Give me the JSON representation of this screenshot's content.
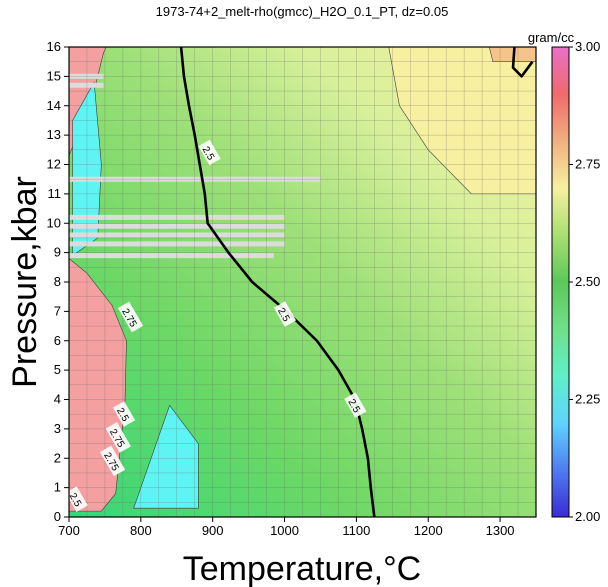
{
  "chart_data": {
    "type": "heatmap",
    "title": "1973-74+2_melt-rho(gmcc)_H2O_0.1_PT, dz=0.05",
    "xlabel": "Temperature,°C",
    "ylabel": "Pressure,kbar",
    "xlim": [
      700,
      1350
    ],
    "ylim": [
      0,
      16
    ],
    "x_ticks": [
      700,
      800,
      900,
      1000,
      1100,
      1200,
      1300
    ],
    "y_ticks": [
      0,
      1,
      2,
      3,
      4,
      5,
      6,
      7,
      8,
      9,
      10,
      11,
      12,
      13,
      14,
      15,
      16
    ],
    "grid": true,
    "colorbar": {
      "label": "gram/cc",
      "range": [
        2.0,
        3.0
      ],
      "ticks": [
        "2.00",
        "2.25",
        "2.50",
        "2.75",
        "3.00"
      ],
      "colors": [
        "#3a2bd6",
        "#4f7cf0",
        "#5fd4ff",
        "#5ef0c8",
        "#6ee08a",
        "#5cc85a",
        "#a8e070",
        "#f7f0a0",
        "#f0b080",
        "#f06a6a",
        "#e870c8"
      ]
    },
    "contour_interval": 0.05,
    "contours": [
      {
        "level": 2.5,
        "points": [
          [
            856,
            16
          ],
          [
            860,
            15
          ],
          [
            867,
            14
          ],
          [
            875,
            13
          ],
          [
            882,
            12
          ],
          [
            889,
            11
          ],
          [
            893,
            10
          ],
          [
            922,
            9
          ],
          [
            955,
            8
          ],
          [
            1003,
            7
          ],
          [
            1045,
            6
          ],
          [
            1075,
            5
          ],
          [
            1098,
            4
          ],
          [
            1108,
            3
          ],
          [
            1116,
            2
          ],
          [
            1120,
            1
          ],
          [
            1125,
            0
          ]
        ]
      },
      {
        "level": 2.75,
        "points": [
          [
            1320,
            16
          ],
          [
            1318,
            15.3
          ],
          [
            1330,
            15
          ],
          [
            1345,
            15.5
          ]
        ]
      }
    ],
    "contour_labels": [
      {
        "text": "2.5",
        "x": 895,
        "y": 12.4
      },
      {
        "text": "2.5",
        "x": 1000,
        "y": 6.9
      },
      {
        "text": "2.5",
        "x": 1098,
        "y": 3.8
      },
      {
        "text": "2.75",
        "x": 785,
        "y": 6.8
      },
      {
        "text": "2.5",
        "x": 776,
        "y": 3.5
      },
      {
        "text": "2.75",
        "x": 768,
        "y": 2.7
      },
      {
        "text": "2.75",
        "x": 760,
        "y": 1.9
      },
      {
        "text": "2.5",
        "x": 710,
        "y": 0.6
      }
    ],
    "field_regions": [
      {
        "name": "high-density-pink",
        "value": 2.85,
        "color": "#f4a0a0",
        "points": [
          [
            700,
            16
          ],
          [
            700,
            12.3
          ],
          [
            715,
            13.2
          ],
          [
            735,
            14.5
          ],
          [
            748,
            15.8
          ],
          [
            752,
            16
          ]
        ]
      },
      {
        "name": "high-density-pink-low",
        "value": 2.85,
        "color": "#f4a0a0",
        "points": [
          [
            700,
            8.8
          ],
          [
            725,
            8.3
          ],
          [
            760,
            7.2
          ],
          [
            780,
            6.0
          ],
          [
            778,
            4.0
          ],
          [
            770,
            2.0
          ],
          [
            765,
            0.8
          ],
          [
            745,
            0.2
          ],
          [
            700,
            0.2
          ]
        ]
      },
      {
        "name": "cyan-pocket-upper",
        "value": 2.3,
        "color": "#5ff4f4",
        "points": [
          [
            705,
            8.9
          ],
          [
            705,
            13.5
          ],
          [
            735,
            14.8
          ],
          [
            745,
            12
          ],
          [
            740,
            9.5
          ]
        ]
      },
      {
        "name": "cyan-pocket-lower",
        "value": 2.3,
        "color": "#5ff4f4",
        "points": [
          [
            790,
            0.3
          ],
          [
            840,
            3.8
          ],
          [
            880,
            2.5
          ],
          [
            880,
            0.3
          ]
        ]
      },
      {
        "name": "yellow-upper-right",
        "value": 2.7,
        "color": "#f7f0a0",
        "points": [
          [
            1145,
            16
          ],
          [
            1160,
            14
          ],
          [
            1200,
            12.5
          ],
          [
            1260,
            11
          ],
          [
            1350,
            11
          ],
          [
            1350,
            16
          ]
        ]
      },
      {
        "name": "peach-corner",
        "value": 2.75,
        "color": "#f5c48a",
        "points": [
          [
            1285,
            16
          ],
          [
            1290,
            15.5
          ],
          [
            1350,
            15.5
          ],
          [
            1350,
            16
          ]
        ]
      }
    ],
    "gap_bands": [
      {
        "y": 11.5,
        "x": [
          700,
          1050
        ]
      },
      {
        "y": 10.2,
        "x": [
          700,
          1000
        ]
      },
      {
        "y": 9.9,
        "x": [
          700,
          1000
        ]
      },
      {
        "y": 9.6,
        "x": [
          700,
          1000
        ]
      },
      {
        "y": 9.3,
        "x": [
          700,
          1000
        ]
      },
      {
        "y": 8.9,
        "x": [
          700,
          985
        ]
      },
      {
        "y": 15.0,
        "x": [
          700,
          748
        ]
      },
      {
        "y": 14.7,
        "x": [
          700,
          748
        ]
      }
    ]
  }
}
